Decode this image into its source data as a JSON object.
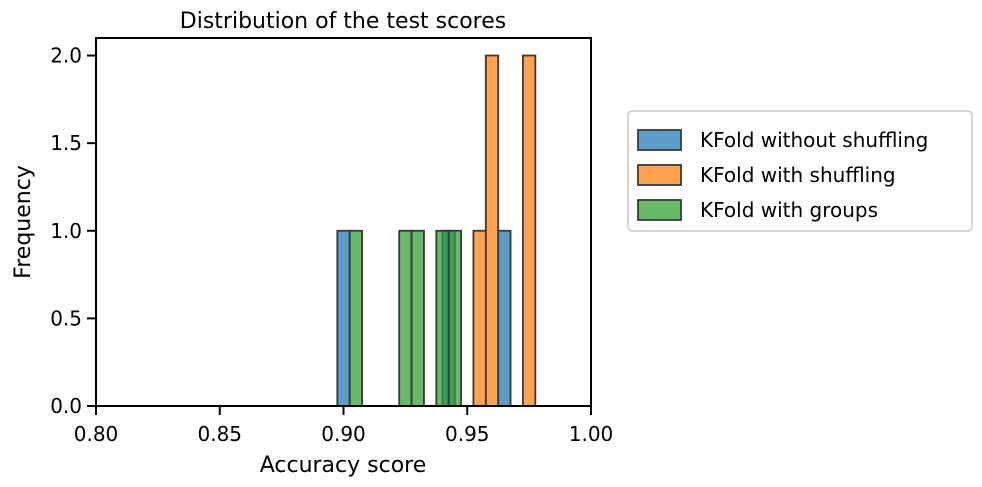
{
  "chart_data": {
    "type": "bar",
    "title": "Distribution of the test scores",
    "xlabel": "Accuracy score",
    "ylabel": "Frequency",
    "xlim": [
      0.8,
      1.0
    ],
    "ylim": [
      0,
      2.1
    ],
    "xticks": [
      "0.80",
      "0.85",
      "0.90",
      "0.95",
      "1.00"
    ],
    "xtick_values": [
      0.8,
      0.85,
      0.9,
      0.95,
      1.0
    ],
    "yticks": [
      "0.0",
      "0.5",
      "1.0",
      "1.5",
      "2.0"
    ],
    "ytick_values": [
      0.0,
      0.5,
      1.0,
      1.5,
      2.0
    ],
    "legend_position": "outside-right",
    "series": [
      {
        "name": "KFold without shuffling",
        "color": "#1f77b4",
        "bins": [
          {
            "x0": 0.8975,
            "x1": 0.9025,
            "count": 1
          },
          {
            "x0": 0.94,
            "x1": 0.945,
            "count": 1
          },
          {
            "x0": 0.9625,
            "x1": 0.9675,
            "count": 1
          }
        ]
      },
      {
        "name": "KFold with shuffling",
        "color": "#ff7f0e",
        "bins": [
          {
            "x0": 0.9525,
            "x1": 0.9575,
            "count": 1
          },
          {
            "x0": 0.9575,
            "x1": 0.9625,
            "count": 2
          },
          {
            "x0": 0.9725,
            "x1": 0.9775,
            "count": 2
          }
        ]
      },
      {
        "name": "KFold with groups",
        "color": "#2ca02c",
        "bins": [
          {
            "x0": 0.9025,
            "x1": 0.9075,
            "count": 1
          },
          {
            "x0": 0.9225,
            "x1": 0.9275,
            "count": 1
          },
          {
            "x0": 0.9275,
            "x1": 0.9325,
            "count": 1
          },
          {
            "x0": 0.9375,
            "x1": 0.9425,
            "count": 1
          },
          {
            "x0": 0.9425,
            "x1": 0.9475,
            "count": 1
          }
        ]
      }
    ]
  }
}
